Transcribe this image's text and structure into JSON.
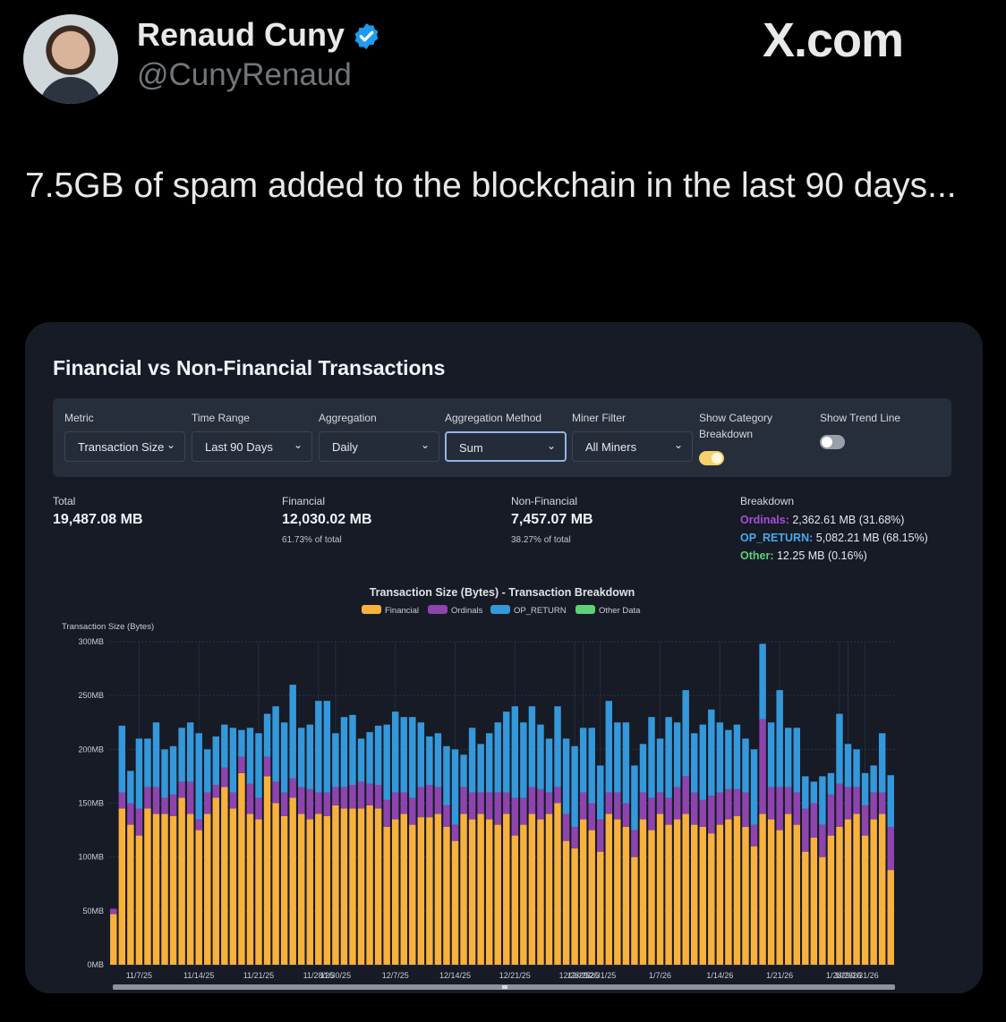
{
  "author": {
    "name": "Renaud Cuny",
    "handle": "@CunyRenaud",
    "verified": true
  },
  "site_logo": "X.com",
  "tweet_text": "7.5GB of spam added to the blockchain in the last 90 days...",
  "card": {
    "title": "Financial vs Non-Financial Transactions",
    "controls": {
      "metric": {
        "label": "Metric",
        "value": "Transaction Size"
      },
      "time_range": {
        "label": "Time Range",
        "value": "Last 90 Days"
      },
      "aggregation": {
        "label": "Aggregation",
        "value": "Daily"
      },
      "aggregation_method": {
        "label": "Aggregation Method",
        "value": "Sum"
      },
      "miner_filter": {
        "label": "Miner Filter",
        "value": "All Miners"
      },
      "show_category_breakdown": {
        "label_line1": "Show Category",
        "label_line2": "Breakdown",
        "on": true
      },
      "show_trend_line": {
        "label": "Show Trend Line",
        "on": false
      }
    },
    "stats": {
      "total": {
        "label": "Total",
        "value": "19,487.08 MB"
      },
      "financial": {
        "label": "Financial",
        "value": "12,030.02 MB",
        "sub": "61.73% of total"
      },
      "non_financial": {
        "label": "Non-Financial",
        "value": "7,457.07 MB",
        "sub": "38.27% of total"
      },
      "breakdown": {
        "label": "Breakdown",
        "ordinals": {
          "name": "Ordinals:",
          "value": "2,362.61 MB (31.68%)"
        },
        "op_return": {
          "name": "OP_RETURN:",
          "value": "5,082.21 MB (68.15%)"
        },
        "other": {
          "name": "Other:",
          "value": "12.25 MB (0.16%)"
        }
      }
    }
  },
  "colors": {
    "financial": "#f7b13c",
    "ordinals": "#8e44ad",
    "op_return": "#3498db",
    "other": "#5ed07a",
    "verified": "#1d9bf0"
  },
  "chart_data": {
    "type": "bar",
    "stacked": true,
    "title": "Transaction Size (Bytes) - Transaction Breakdown",
    "ylabel": "Transaction Size (Bytes)",
    "ylim": [
      0,
      300
    ],
    "yticks": [
      "0MB",
      "50MB",
      "100MB",
      "150MB",
      "200MB",
      "250MB",
      "300MB"
    ],
    "xtick_labels": [
      "11/7/25",
      "11/14/25",
      "11/21/25",
      "11/28/25",
      "11/30/25",
      "12/7/25",
      "12/14/25",
      "12/21/25",
      "12/28/25",
      "12/29/25",
      "12/31/25",
      "1/7/26",
      "1/14/26",
      "1/21/26",
      "1/28/26",
      "1/29/26",
      "1/31/26"
    ],
    "xtick_bar_index": [
      3,
      10,
      17,
      24,
      26,
      33,
      40,
      47,
      54,
      55,
      57,
      64,
      71,
      78,
      85,
      86,
      88
    ],
    "legend": [
      "Financial",
      "Ordinals",
      "OP_RETURN",
      "Other Data"
    ],
    "grid": true,
    "series": [
      {
        "name": "Financial",
        "values": [
          47,
          145,
          130,
          120,
          145,
          140,
          140,
          138,
          155,
          140,
          125,
          140,
          155,
          165,
          145,
          178,
          140,
          135,
          175,
          150,
          138,
          155,
          140,
          135,
          140,
          138,
          148,
          145,
          145,
          145,
          148,
          145,
          128,
          135,
          140,
          130,
          137,
          137,
          140,
          128,
          115,
          140,
          135,
          140,
          135,
          130,
          140,
          120,
          130,
          140,
          135,
          140,
          150,
          115,
          108,
          135,
          125,
          105,
          140,
          135,
          128,
          100,
          135,
          125,
          140,
          130,
          135,
          140,
          130,
          128,
          122,
          130,
          135,
          138,
          128,
          110,
          140,
          135,
          125,
          140,
          130,
          105,
          118,
          100,
          120,
          128,
          135,
          140,
          120,
          135,
          140,
          88
        ]
      },
      {
        "name": "Ordinals",
        "values": [
          5,
          15,
          20,
          25,
          20,
          25,
          15,
          20,
          15,
          30,
          10,
          20,
          12,
          18,
          15,
          15,
          28,
          20,
          18,
          20,
          22,
          18,
          25,
          28,
          20,
          22,
          17,
          20,
          22,
          25,
          20,
          22,
          25,
          25,
          20,
          25,
          28,
          30,
          25,
          20,
          15,
          25,
          25,
          20,
          25,
          30,
          20,
          35,
          25,
          25,
          28,
          20,
          15,
          25,
          20,
          25,
          25,
          30,
          20,
          25,
          22,
          25,
          25,
          30,
          20,
          25,
          30,
          35,
          30,
          25,
          35,
          30,
          28,
          25,
          32,
          20,
          88,
          30,
          40,
          25,
          30,
          40,
          32,
          30,
          38,
          40,
          30,
          25,
          28,
          25,
          20,
          40
        ]
      },
      {
        "name": "OP_RETURN",
        "values": [
          0,
          62,
          30,
          65,
          45,
          60,
          45,
          45,
          50,
          55,
          80,
          40,
          45,
          40,
          60,
          25,
          52,
          60,
          40,
          70,
          65,
          87,
          55,
          60,
          85,
          85,
          50,
          65,
          65,
          40,
          48,
          55,
          70,
          75,
          70,
          75,
          60,
          45,
          50,
          55,
          70,
          30,
          60,
          45,
          55,
          65,
          75,
          85,
          70,
          75,
          60,
          50,
          75,
          70,
          75,
          60,
          70,
          50,
          85,
          65,
          75,
          60,
          45,
          75,
          50,
          75,
          60,
          80,
          55,
          70,
          80,
          65,
          55,
          60,
          50,
          70,
          70,
          60,
          90,
          55,
          60,
          30,
          20,
          45,
          20,
          65,
          40,
          35,
          30,
          25,
          55,
          48
        ]
      },
      {
        "name": "Other Data",
        "values": [
          0,
          0,
          0,
          0,
          0,
          0,
          0,
          0,
          0,
          0,
          0,
          0,
          0,
          0,
          0,
          0,
          0,
          0,
          0,
          0,
          0,
          0,
          0,
          0,
          0,
          0,
          0,
          0,
          0,
          0,
          0,
          0,
          0,
          0,
          0,
          0,
          0,
          0,
          0,
          0,
          0,
          0,
          0,
          0,
          0,
          0,
          0,
          0,
          0,
          0,
          0,
          0,
          0,
          0,
          0,
          0,
          0,
          0,
          0,
          0,
          0,
          0,
          0,
          0,
          0,
          0,
          0,
          0,
          0,
          0,
          0,
          0,
          0,
          0,
          0,
          0,
          0,
          0,
          0,
          0,
          0,
          0,
          0,
          0,
          0,
          0,
          0,
          0,
          0,
          0,
          0,
          0
        ]
      }
    ]
  }
}
